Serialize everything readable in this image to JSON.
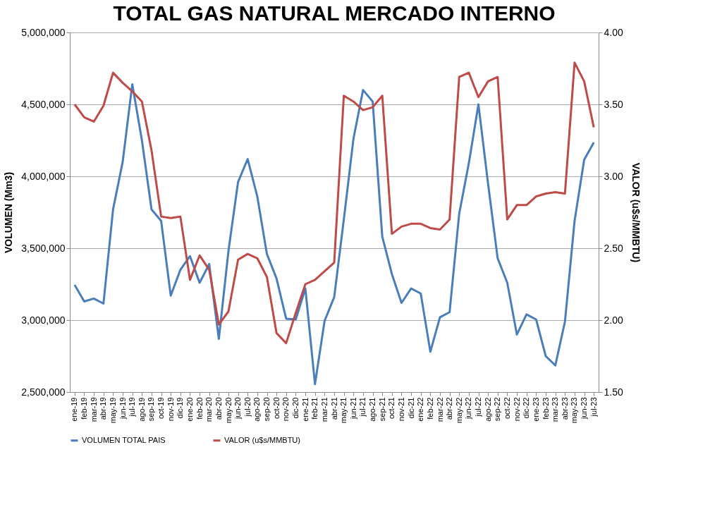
{
  "chart_data": {
    "type": "line",
    "title": "TOTAL GAS NATURAL MERCADO INTERNO",
    "ylabel": "VOLUMEN (Mm3)",
    "y2label": "VALOR (u$s/MMBTU)",
    "categories": [
      "ene-19",
      "feb-19",
      "mar-19",
      "abr-19",
      "may-19",
      "jun-19",
      "jul-19",
      "ago-19",
      "sep-19",
      "oct-19",
      "nov-19",
      "dic-19",
      "ene-20",
      "feb-20",
      "mar-20",
      "abr-20",
      "may-20",
      "jun-20",
      "jul-20",
      "ago-20",
      "sep-20",
      "oct-20",
      "nov-20",
      "dic-20",
      "ene-21",
      "feb-21",
      "mar-21",
      "abr-21",
      "may-21",
      "jun-21",
      "jul-21",
      "ago-21",
      "sep-21",
      "oct-21",
      "nov-21",
      "dic-21",
      "ene-22",
      "feb-22",
      "mar-22",
      "abr-22",
      "may-22",
      "jun-22",
      "jul-22",
      "ago-22",
      "sep-22",
      "oct-22",
      "nov-22",
      "dic-22",
      "ene-23",
      "feb-23",
      "mar-23",
      "abr-23",
      "may-23",
      "jun-23",
      "jul-23"
    ],
    "series": [
      {
        "name": "VOLUMEN TOTAL PAIS",
        "color": "#4a7ebb",
        "values": [
          3245000,
          3130000,
          3150000,
          3115000,
          3770000,
          4100000,
          4640000,
          4250000,
          3770000,
          3690000,
          3170000,
          3350000,
          3445000,
          3260000,
          3390000,
          2870000,
          3480000,
          3960000,
          4120000,
          3860000,
          3460000,
          3290000,
          3010000,
          3005000,
          3220000,
          2555000,
          2995000,
          3160000,
          3700000,
          4260000,
          4600000,
          4520000,
          3580000,
          3320000,
          3120000,
          3220000,
          3185000,
          2780000,
          3020000,
          3055000,
          3740000,
          4090000,
          4500000,
          3950000,
          3430000,
          3260000,
          2900000,
          3040000,
          3005000,
          2750000,
          2685000,
          2990000,
          3690000,
          4115000,
          4235000
        ]
      },
      {
        "name": "VALOR (u$s/MMBTU)",
        "color": "#be4b48",
        "axis": "y2",
        "values": [
          3.5,
          3.41,
          3.38,
          3.49,
          3.72,
          3.65,
          3.59,
          3.52,
          3.18,
          2.72,
          2.71,
          2.72,
          2.28,
          2.45,
          2.35,
          1.97,
          2.06,
          2.42,
          2.46,
          2.43,
          2.3,
          1.91,
          1.84,
          2.05,
          2.25,
          2.28,
          2.34,
          2.4,
          3.56,
          3.52,
          3.46,
          3.48,
          3.56,
          2.6,
          2.65,
          2.67,
          2.67,
          2.64,
          2.63,
          2.7,
          3.69,
          3.72,
          3.55,
          3.66,
          3.69,
          2.7,
          2.8,
          2.8,
          2.86,
          2.88,
          2.89,
          2.88,
          3.79,
          3.66,
          3.34
        ]
      }
    ],
    "ylim": [
      2500000,
      5000000
    ],
    "yticks": [
      {
        "value": 2500000,
        "label": "2,500,000"
      },
      {
        "value": 3000000,
        "label": "3,000,000"
      },
      {
        "value": 3500000,
        "label": "3,500,000"
      },
      {
        "value": 4000000,
        "label": "4,000,000"
      },
      {
        "value": 4500000,
        "label": "4,500,000"
      },
      {
        "value": 5000000,
        "label": "5,000,000"
      }
    ],
    "y2lim": [
      1.5,
      4.0
    ],
    "y2ticks": [
      {
        "value": 1.5,
        "label": "1.50"
      },
      {
        "value": 2.0,
        "label": "2.00"
      },
      {
        "value": 2.5,
        "label": "2.50"
      },
      {
        "value": 3.0,
        "label": "3.00"
      },
      {
        "value": 3.5,
        "label": "3.50"
      },
      {
        "value": 4.0,
        "label": "4.00"
      }
    ],
    "grid": "y",
    "legend": "bottom",
    "marker": "none",
    "line_style": "solid"
  }
}
